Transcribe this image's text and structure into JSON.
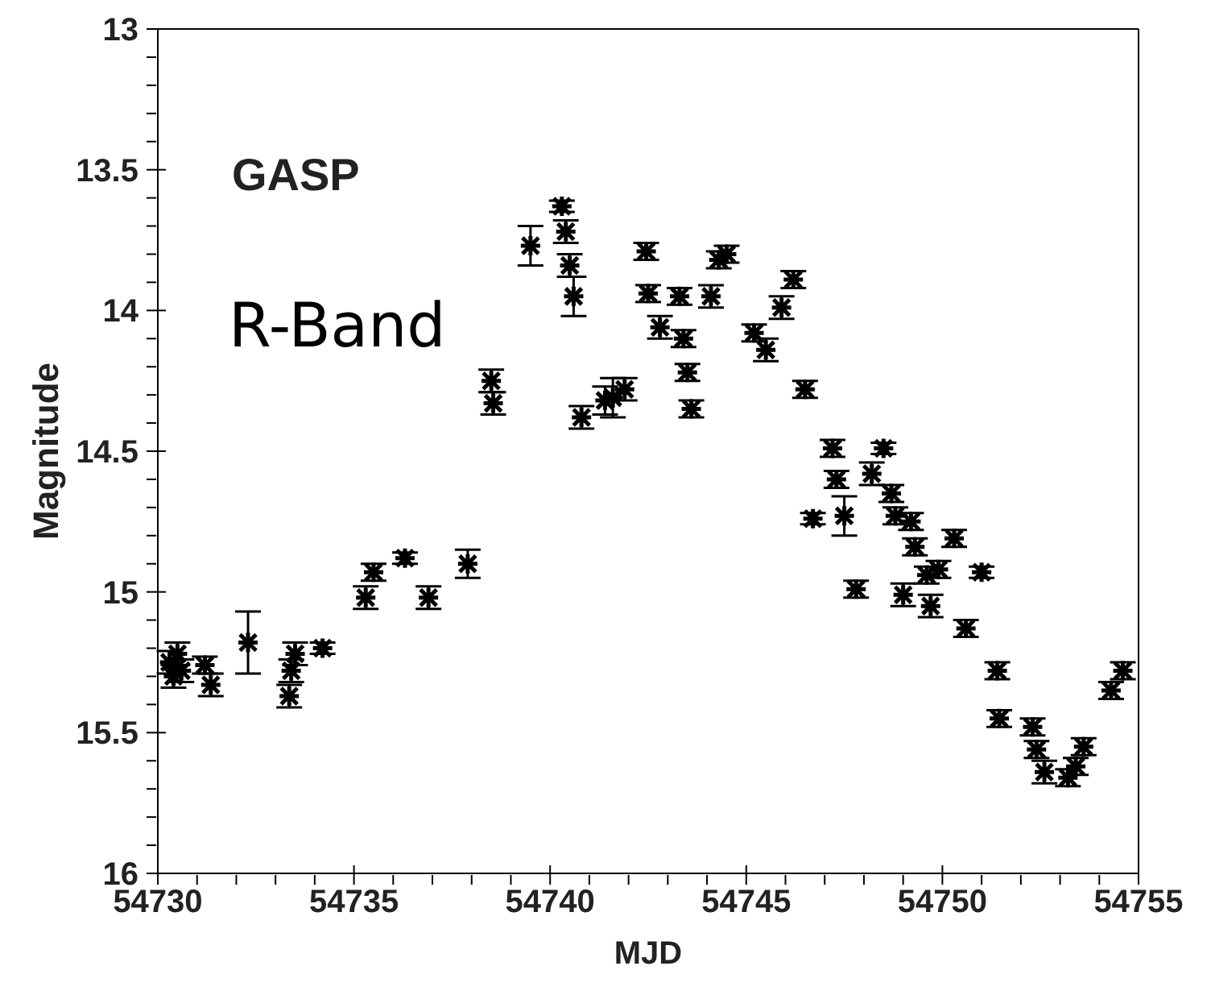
{
  "chart_data": {
    "type": "scatter",
    "xlabel": "MJD",
    "ylabel": "Magnitude",
    "annotations": [
      "GASP",
      "R-Band"
    ],
    "x": [
      54730.3,
      54730.4,
      54730.5,
      54730.6,
      54731.2,
      54731.35,
      54732.3,
      54733.35,
      54733.4,
      54733.5,
      54734.2,
      54735.3,
      54735.5,
      54736.3,
      54736.9,
      54737.9,
      54738.5,
      54738.55,
      54739.5,
      54740.3,
      54740.4,
      54740.5,
      54740.6,
      54740.8,
      54741.4,
      54741.6,
      54741.9,
      54742.45,
      54742.5,
      54742.8,
      54743.3,
      54743.4,
      54743.5,
      54743.6,
      54744.1,
      54744.3,
      54744.5,
      54745.2,
      54745.5,
      54745.9,
      54746.2,
      54746.5,
      54746.7,
      54747.2,
      54747.3,
      54747.5,
      54747.8,
      54748.2,
      54748.5,
      54748.7,
      54748.8,
      54749.0,
      54749.2,
      54749.3,
      54749.6,
      54749.7,
      54749.9,
      54750.3,
      54750.6,
      54751.0,
      54751.4,
      54751.45,
      54752.3,
      54752.4,
      54752.6,
      54753.2,
      54753.4,
      54753.6,
      54754.3,
      54754.6
    ],
    "values": [
      15.25,
      15.3,
      15.22,
      15.28,
      15.26,
      15.33,
      15.18,
      15.37,
      15.28,
      15.22,
      15.2,
      15.02,
      14.93,
      14.88,
      15.02,
      14.9,
      14.25,
      14.33,
      13.77,
      13.63,
      13.72,
      13.84,
      13.95,
      14.38,
      14.32,
      14.31,
      14.28,
      13.79,
      13.94,
      14.06,
      13.95,
      14.1,
      14.22,
      14.35,
      13.95,
      13.82,
      13.8,
      14.08,
      14.14,
      13.99,
      13.89,
      14.28,
      14.74,
      14.49,
      14.6,
      14.73,
      14.99,
      14.58,
      14.49,
      14.65,
      14.73,
      15.01,
      14.75,
      14.84,
      14.94,
      15.05,
      14.92,
      14.81,
      15.13,
      14.93,
      15.28,
      15.45,
      15.48,
      15.56,
      15.64,
      15.66,
      15.62,
      15.55,
      15.35,
      15.28
    ],
    "errors": [
      0.04,
      0.04,
      0.04,
      0.04,
      0.03,
      0.04,
      0.11,
      0.04,
      0.04,
      0.04,
      0.02,
      0.04,
      0.03,
      0.02,
      0.04,
      0.05,
      0.04,
      0.04,
      0.07,
      0.02,
      0.04,
      0.04,
      0.07,
      0.04,
      0.05,
      0.07,
      0.04,
      0.03,
      0.03,
      0.04,
      0.03,
      0.03,
      0.03,
      0.03,
      0.04,
      0.03,
      0.03,
      0.03,
      0.04,
      0.04,
      0.03,
      0.03,
      0.02,
      0.03,
      0.03,
      0.07,
      0.03,
      0.04,
      0.02,
      0.03,
      0.03,
      0.04,
      0.03,
      0.03,
      0.03,
      0.04,
      0.03,
      0.03,
      0.03,
      0.02,
      0.03,
      0.03,
      0.03,
      0.03,
      0.04,
      0.03,
      0.03,
      0.03,
      0.03,
      0.03
    ],
    "color": "#000000",
    "marker": "cross",
    "xlim": [
      54730,
      54755
    ],
    "xticks": [
      54730,
      {
        "value": 54731,
        "label": null
      },
      {
        "value": 54732,
        "label": null
      },
      {
        "value": 54733,
        "label": null
      },
      {
        "value": 54734,
        "label": null
      },
      54735,
      {
        "value": 54736,
        "label": null
      },
      {
        "value": 54737,
        "label": null
      },
      {
        "value": 54738,
        "label": null
      },
      {
        "value": 54739,
        "label": null
      },
      54740,
      {
        "value": 54741,
        "label": null
      },
      {
        "value": 54742,
        "label": null
      },
      {
        "value": 54743,
        "label": null
      },
      {
        "value": 54744,
        "label": null
      },
      54745,
      {
        "value": 54746,
        "label": null
      },
      {
        "value": 54747,
        "label": null
      },
      {
        "value": 54748,
        "label": null
      },
      {
        "value": 54749,
        "label": null
      },
      54750,
      {
        "value": 54751,
        "label": null
      },
      {
        "value": 54752,
        "label": null
      },
      {
        "value": 54753,
        "label": null
      },
      {
        "value": 54754,
        "label": null
      },
      54755
    ],
    "ylim": [
      16,
      13
    ],
    "yticks": [
      13,
      {
        "value": 13.1,
        "label": null
      },
      {
        "value": 13.2,
        "label": null
      },
      {
        "value": 13.3,
        "label": null
      },
      {
        "value": 13.4,
        "label": null
      },
      13.5,
      {
        "value": 13.6,
        "label": null
      },
      {
        "value": 13.7,
        "label": null
      },
      {
        "value": 13.8,
        "label": null
      },
      {
        "value": 13.9,
        "label": null
      },
      14,
      {
        "value": 14.1,
        "label": null
      },
      {
        "value": 14.2,
        "label": null
      },
      {
        "value": 14.3,
        "label": null
      },
      {
        "value": 14.4,
        "label": null
      },
      14.5,
      {
        "value": 14.6,
        "label": null
      },
      {
        "value": 14.7,
        "label": null
      },
      {
        "value": 14.8,
        "label": null
      },
      {
        "value": 14.9,
        "label": null
      },
      15,
      {
        "value": 15.1,
        "label": null
      },
      {
        "value": 15.2,
        "label": null
      },
      {
        "value": 15.3,
        "label": null
      },
      {
        "value": 15.4,
        "label": null
      },
      15.5,
      {
        "value": 15.6,
        "label": null
      },
      {
        "value": 15.7,
        "label": null
      },
      {
        "value": 15.8,
        "label": null
      },
      {
        "value": 15.9,
        "label": null
      },
      16
    ],
    "grid": false,
    "legend": false
  }
}
